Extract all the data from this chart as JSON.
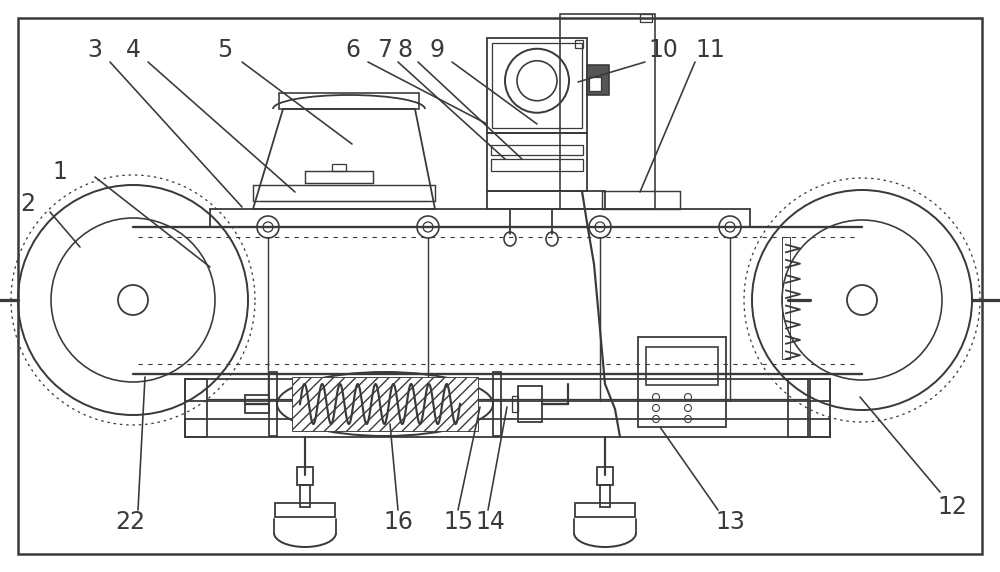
{
  "bg_color": "#ffffff",
  "line_color": "#3a3a3a",
  "lw": 1.3,
  "label_fontsize": 17,
  "figsize": [
    10.0,
    5.72
  ],
  "dpi": 100,
  "xlim": [
    0,
    1000
  ],
  "ylim": [
    0,
    572
  ]
}
